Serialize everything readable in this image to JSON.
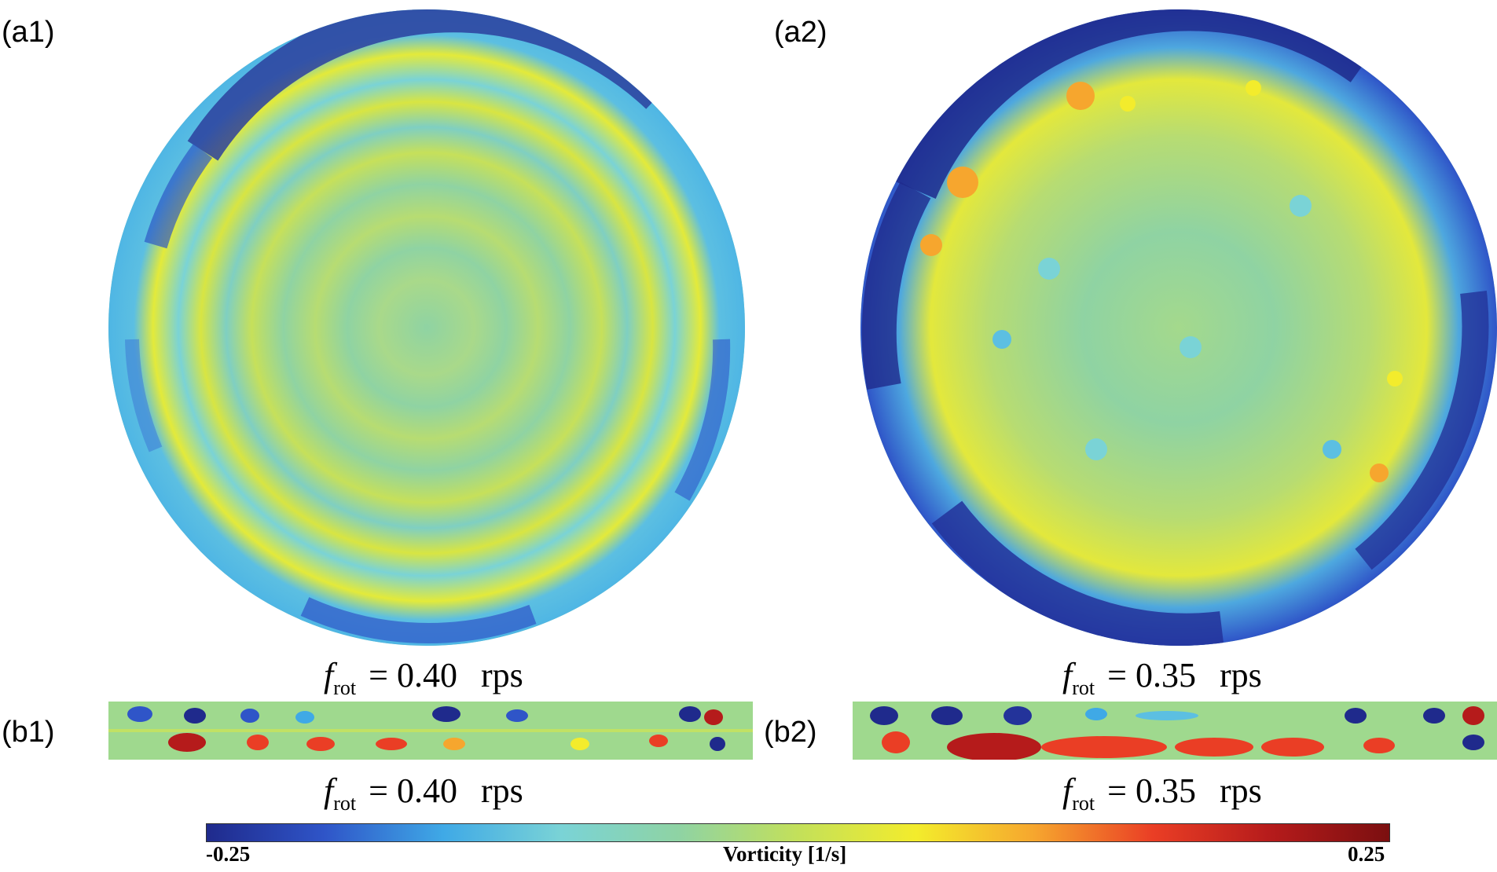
{
  "panels": {
    "a1": {
      "label": "(a1)"
    },
    "a2": {
      "label": "(a2)"
    },
    "b1": {
      "label": "(b1)"
    },
    "b2": {
      "label": "(b2)"
    }
  },
  "captions": {
    "a1": {
      "symbol": "f",
      "subscript": "rot",
      "equals": "= 0.40",
      "unit": "rps"
    },
    "a2": {
      "symbol": "f",
      "subscript": "rot",
      "equals": "= 0.35",
      "unit": "rps"
    },
    "b1": {
      "symbol": "f",
      "subscript": "rot",
      "equals": "= 0.40",
      "unit": "rps"
    },
    "b2": {
      "symbol": "f",
      "subscript": "rot",
      "equals": "= 0.35",
      "unit": "rps"
    }
  },
  "colorbar": {
    "min_label": "-0.25",
    "max_label": "0.25",
    "title": "Vorticity [1/s]",
    "min": -0.25,
    "max": 0.25,
    "colormap": [
      "#1f2a8c",
      "#2f55c8",
      "#3fa9e6",
      "#7ad3d6",
      "#8fd3a3",
      "#c3e05a",
      "#f3ec2c",
      "#f6a62e",
      "#ea3e25",
      "#b51b1b",
      "#7b0f10"
    ]
  }
}
